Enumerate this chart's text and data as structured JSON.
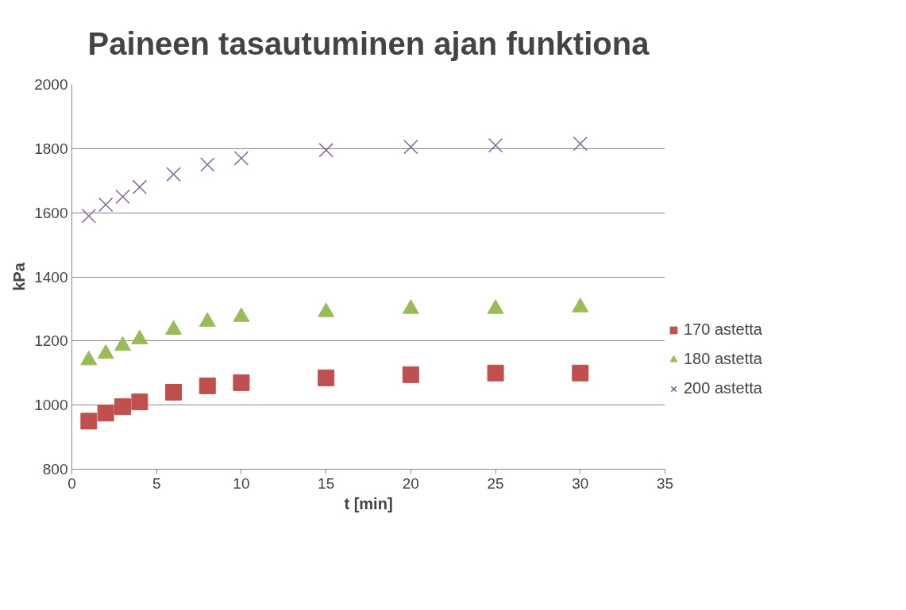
{
  "chart_data": {
    "type": "scatter",
    "title": "Paineen tasautuminen ajan funktiona",
    "xlabel": "t [min]",
    "ylabel": "kPa",
    "x": [
      1,
      2,
      3,
      4,
      6,
      8,
      10,
      15,
      20,
      25,
      30
    ],
    "series": [
      {
        "name": "170 astetta",
        "color": "#c0504d",
        "marker": "square",
        "values": [
          950,
          975,
          995,
          1010,
          1040,
          1060,
          1070,
          1085,
          1095,
          1100,
          1100
        ]
      },
      {
        "name": "180 astetta",
        "color": "#9bbb59",
        "marker": "triangle",
        "values": [
          1140,
          1160,
          1185,
          1205,
          1235,
          1260,
          1275,
          1290,
          1300,
          1300,
          1305
        ]
      },
      {
        "name": "200 astetta",
        "color": "#8064a2",
        "marker": "cross",
        "values": [
          1590,
          1625,
          1650,
          1680,
          1720,
          1750,
          1770,
          1795,
          1805,
          1810,
          1815
        ]
      }
    ],
    "xlim": [
      0,
      35
    ],
    "xticks": [
      0,
      5,
      10,
      15,
      20,
      25,
      30,
      35
    ],
    "ylim": [
      800,
      2000
    ],
    "yticks": [
      800,
      1000,
      1200,
      1400,
      1600,
      1800,
      2000
    ],
    "grid": "y",
    "legend": "right"
  }
}
